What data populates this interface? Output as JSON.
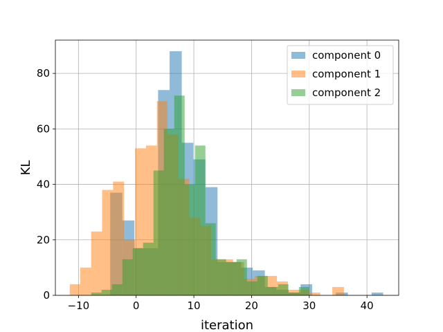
{
  "chart_data": {
    "type": "histogram",
    "xlabel": "iteration",
    "ylabel": "KL",
    "xlim": [
      -14,
      45.5
    ],
    "ylim": [
      0,
      92
    ],
    "x_ticks": [
      -10,
      0,
      10,
      20,
      30,
      40
    ],
    "y_ticks": [
      0,
      20,
      40,
      60,
      80
    ],
    "grid": true,
    "legend_position": "top-right",
    "series": [
      {
        "name": "component 0",
        "color": "#1f77b4",
        "opacity": 0.5,
        "bins": [
          [
            -4.5,
            -2.4,
            37
          ],
          [
            -2.4,
            -0.3,
            27
          ],
          [
            -0.3,
            1.7,
            17
          ],
          [
            1.7,
            3.8,
            17
          ],
          [
            3.8,
            5.8,
            74
          ],
          [
            5.8,
            7.9,
            88
          ],
          [
            7.9,
            9.9,
            55
          ],
          [
            9.9,
            12.0,
            49
          ],
          [
            12.0,
            14.1,
            39
          ],
          [
            14.1,
            16.1,
            12
          ],
          [
            16.1,
            18.2,
            12
          ],
          [
            18.2,
            20.2,
            10
          ],
          [
            20.2,
            22.3,
            9
          ],
          [
            22.3,
            24.3,
            3
          ],
          [
            24.3,
            26.4,
            2
          ],
          [
            26.4,
            28.5,
            1
          ],
          [
            28.5,
            30.5,
            4
          ],
          [
            34.6,
            36.7,
            1
          ],
          [
            40.8,
            42.8,
            1
          ]
        ]
      },
      {
        "name": "component 1",
        "color": "#ff7f0e",
        "opacity": 0.5,
        "bins": [
          [
            -11.5,
            -9.7,
            4
          ],
          [
            -9.7,
            -7.8,
            10
          ],
          [
            -7.8,
            -5.9,
            23
          ],
          [
            -5.9,
            -4.0,
            38
          ],
          [
            -4.0,
            -2.1,
            41
          ],
          [
            -2.1,
            -0.2,
            20
          ],
          [
            -0.2,
            1.7,
            53
          ],
          [
            1.7,
            3.6,
            54
          ],
          [
            3.6,
            5.4,
            70
          ],
          [
            5.4,
            7.3,
            58
          ],
          [
            7.3,
            9.2,
            42
          ],
          [
            9.2,
            11.1,
            28
          ],
          [
            11.1,
            13.0,
            25
          ],
          [
            13.0,
            14.9,
            13
          ],
          [
            14.9,
            16.8,
            13
          ],
          [
            16.8,
            18.7,
            12
          ],
          [
            18.7,
            20.6,
            6
          ],
          [
            20.6,
            22.5,
            7
          ],
          [
            22.5,
            24.4,
            7
          ],
          [
            24.4,
            26.3,
            5
          ],
          [
            26.3,
            28.2,
            2
          ],
          [
            28.2,
            30.0,
            2
          ],
          [
            30.0,
            31.9,
            1
          ],
          [
            34.0,
            36.0,
            3
          ]
        ]
      },
      {
        "name": "component 2",
        "color": "#2ca02c",
        "opacity": 0.5,
        "bins": [
          [
            -7.8,
            -6.0,
            1
          ],
          [
            -6.0,
            -4.2,
            2
          ],
          [
            -4.2,
            -2.4,
            4
          ],
          [
            -2.4,
            -0.6,
            13
          ],
          [
            -0.6,
            1.2,
            17
          ],
          [
            1.2,
            3.0,
            19
          ],
          [
            3.0,
            4.8,
            45
          ],
          [
            4.8,
            6.6,
            60
          ],
          [
            6.6,
            8.4,
            72
          ],
          [
            8.4,
            10.2,
            40
          ],
          [
            10.2,
            12.0,
            54
          ],
          [
            12.0,
            13.8,
            26
          ],
          [
            13.8,
            15.6,
            13
          ],
          [
            15.6,
            17.4,
            12
          ],
          [
            17.4,
            19.2,
            13
          ],
          [
            19.2,
            21.0,
            5
          ],
          [
            21.0,
            22.8,
            7
          ],
          [
            22.8,
            24.6,
            3
          ],
          [
            24.6,
            26.4,
            4
          ],
          [
            26.4,
            28.2,
            1
          ],
          [
            28.2,
            30.0,
            3
          ]
        ]
      }
    ]
  }
}
